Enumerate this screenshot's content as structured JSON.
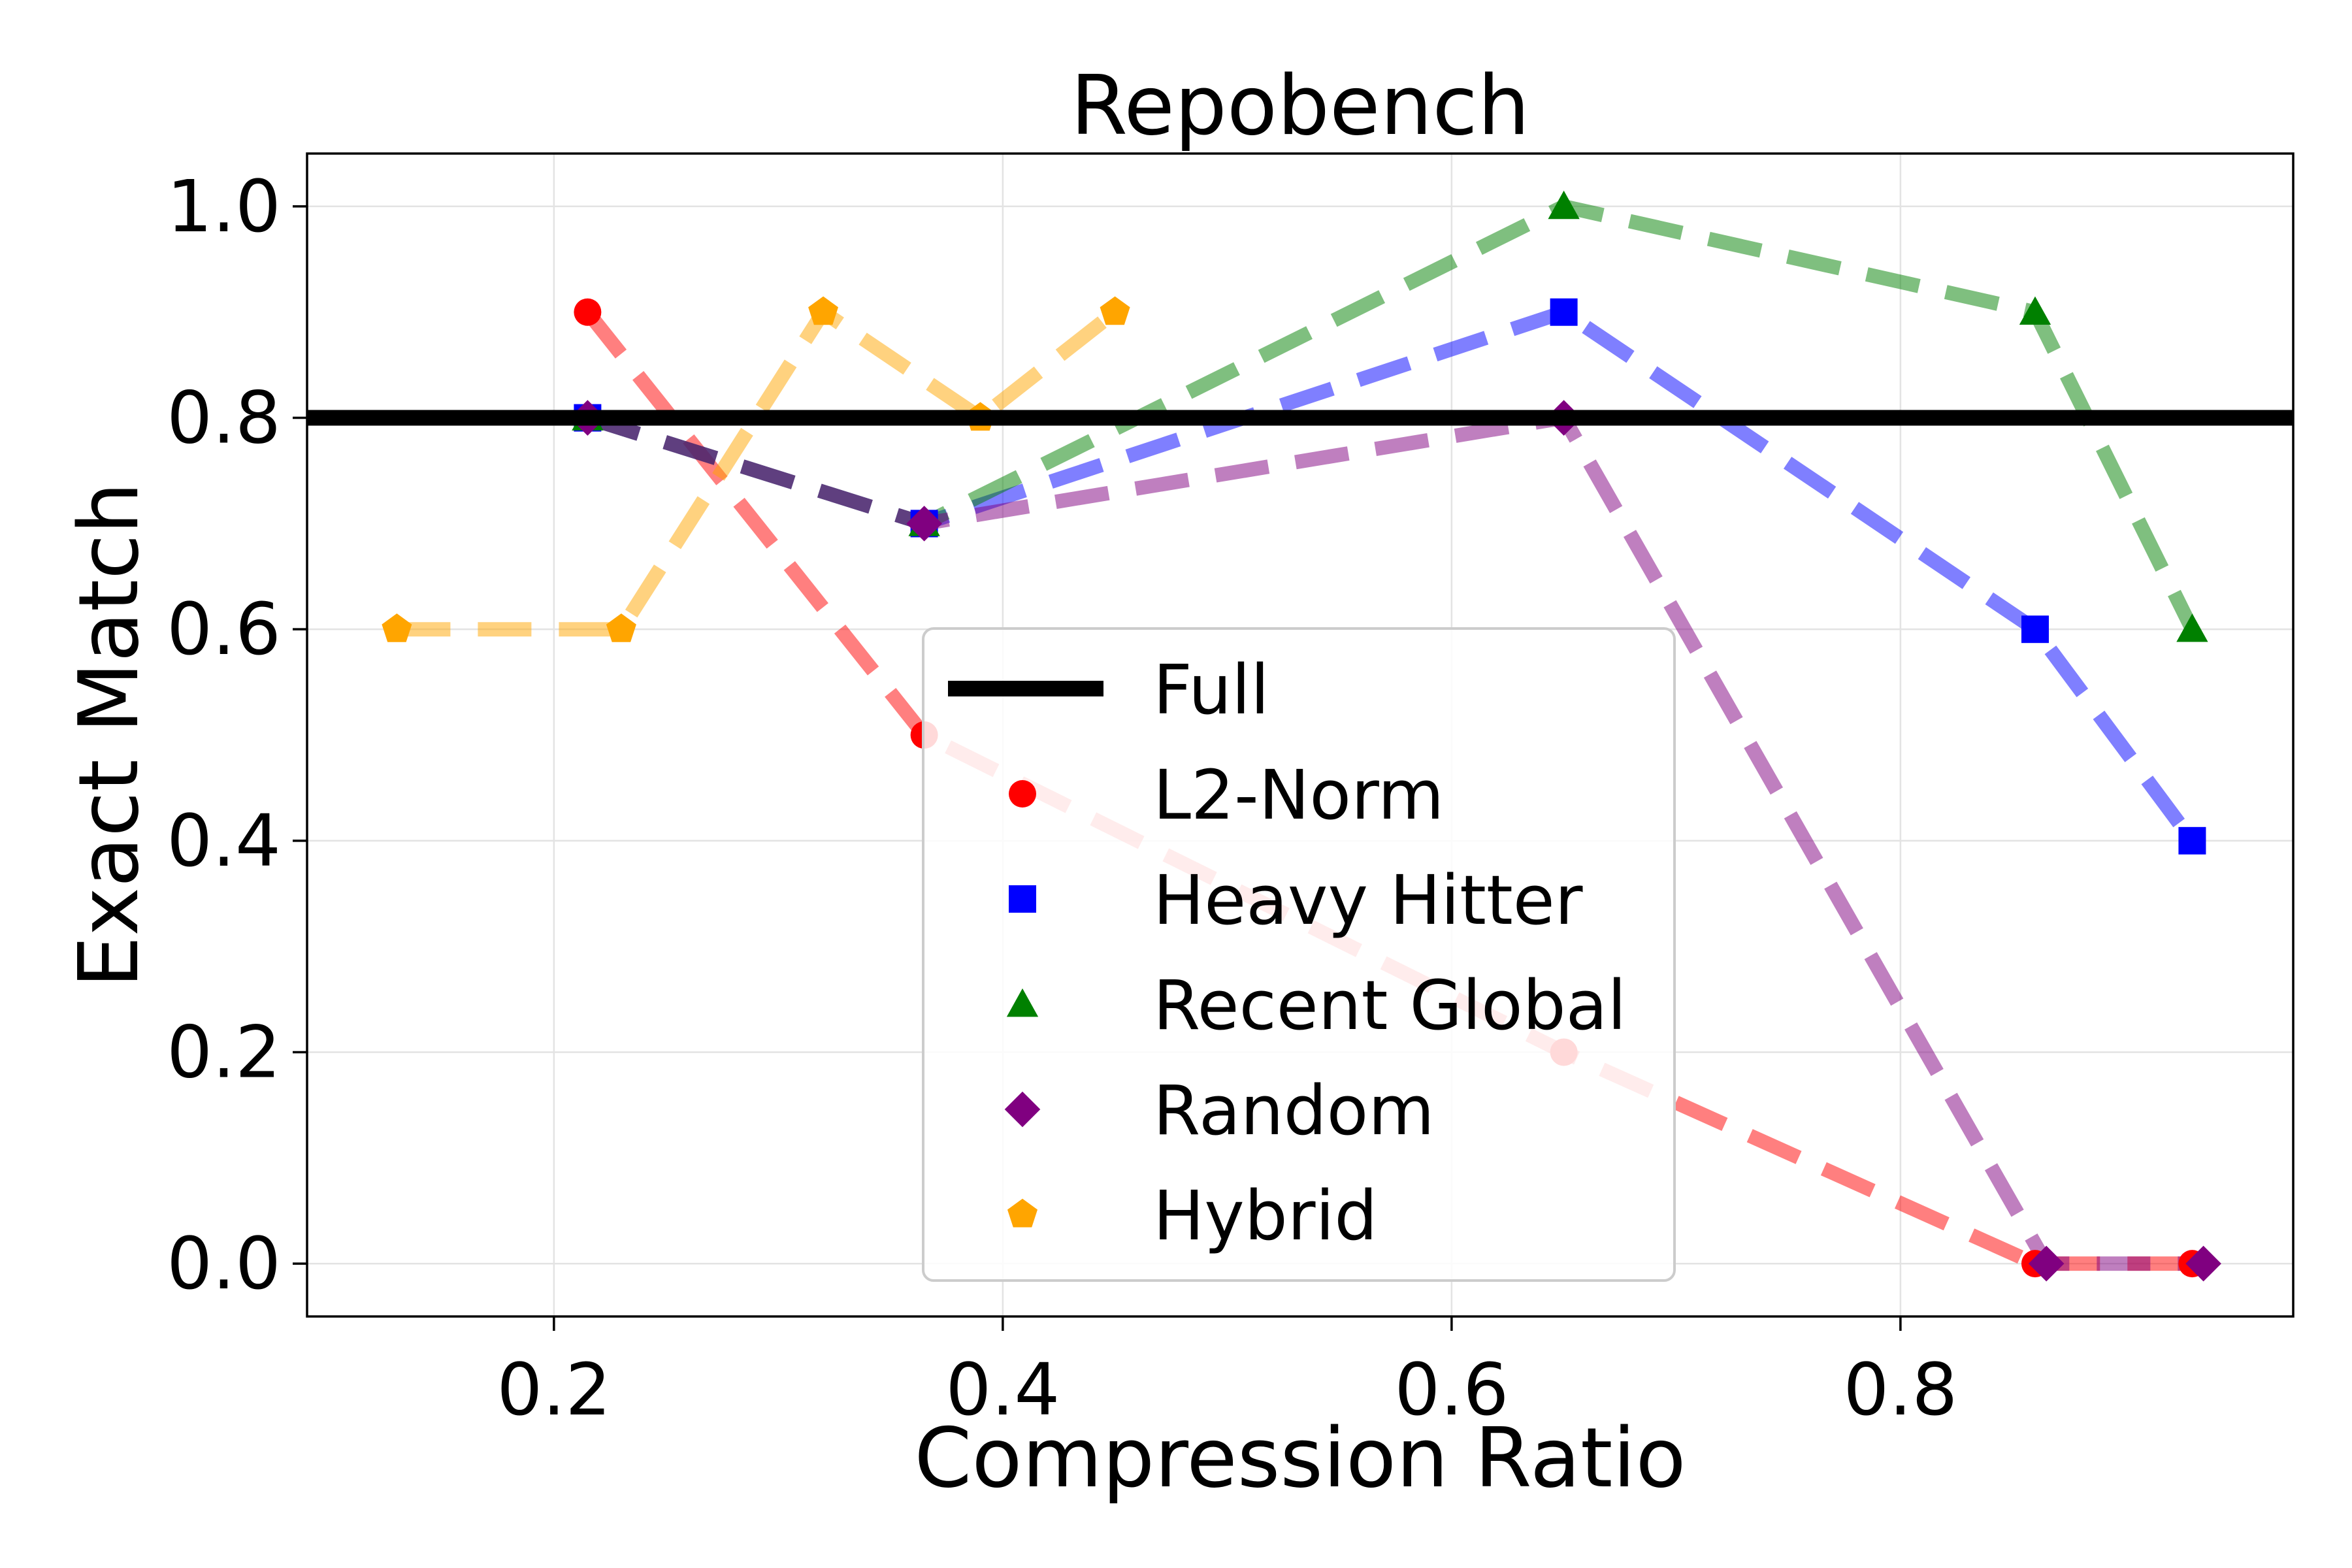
{
  "chart_data": {
    "type": "line",
    "title": "Repobench",
    "xlabel": "Compression Ratio",
    "ylabel": "Exact Match",
    "xlim": [
      0.09,
      0.975
    ],
    "ylim": [
      -0.05,
      1.05
    ],
    "x_ticks": [
      0.2,
      0.4,
      0.6,
      0.8
    ],
    "y_ticks": [
      0.0,
      0.2,
      0.4,
      0.6,
      0.8,
      1.0
    ],
    "x_tick_labels": [
      "0.2",
      "0.4",
      "0.6",
      "0.8"
    ],
    "y_tick_labels": [
      "0.0",
      "0.2",
      "0.4",
      "0.6",
      "0.8",
      "1.0"
    ],
    "grid": true,
    "legend_position": "center",
    "reference_line": {
      "name": "Full",
      "y": 0.8,
      "color": "#000000"
    },
    "series": [
      {
        "name": "L2-Norm",
        "color": "#ff0000",
        "marker": "circle",
        "x": [
          0.215,
          0.365,
          0.65,
          0.86,
          0.93
        ],
        "y": [
          0.9,
          0.5,
          0.2,
          0.0,
          0.0
        ]
      },
      {
        "name": "Heavy Hitter",
        "color": "#0000ff",
        "marker": "square",
        "x": [
          0.215,
          0.365,
          0.65,
          0.86,
          0.93
        ],
        "y": [
          0.8,
          0.7,
          0.9,
          0.6,
          0.4
        ]
      },
      {
        "name": "Recent Global",
        "color": "#008000",
        "marker": "triangle",
        "x": [
          0.215,
          0.365,
          0.65,
          0.86,
          0.93
        ],
        "y": [
          0.8,
          0.7,
          1.0,
          0.9,
          0.6
        ]
      },
      {
        "name": "Random",
        "color": "#800080",
        "marker": "diamond",
        "x": [
          0.215,
          0.365,
          0.65,
          0.865,
          0.935
        ],
        "y": [
          0.8,
          0.7,
          0.8,
          0.0,
          0.0
        ]
      },
      {
        "name": "Hybrid",
        "color": "#ffa500",
        "marker": "pentagon",
        "x": [
          0.13,
          0.23,
          0.32,
          0.39,
          0.45
        ],
        "y": [
          0.6,
          0.6,
          0.9,
          0.8,
          0.9
        ]
      }
    ]
  }
}
